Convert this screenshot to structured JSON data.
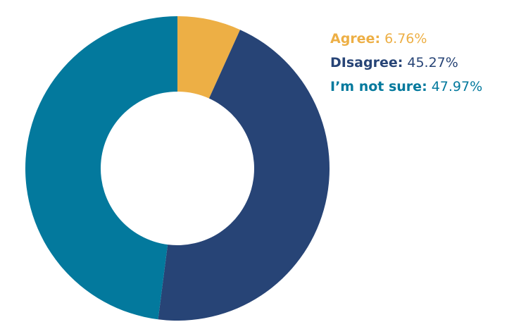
{
  "chart_data": {
    "type": "pie",
    "donut": true,
    "categories": [
      "Agree",
      "Disagree",
      "I’m not sure"
    ],
    "values": [
      6.76,
      45.27,
      47.97
    ],
    "value_labels": [
      "6.76%",
      "45.27%",
      "47.97%"
    ],
    "legend_labels": [
      "Agree:",
      "DIsagree:",
      "I’m not sure:"
    ],
    "colors": [
      "#EDAF45",
      "#274476",
      "#03799D"
    ],
    "legend_position": "top-right"
  }
}
